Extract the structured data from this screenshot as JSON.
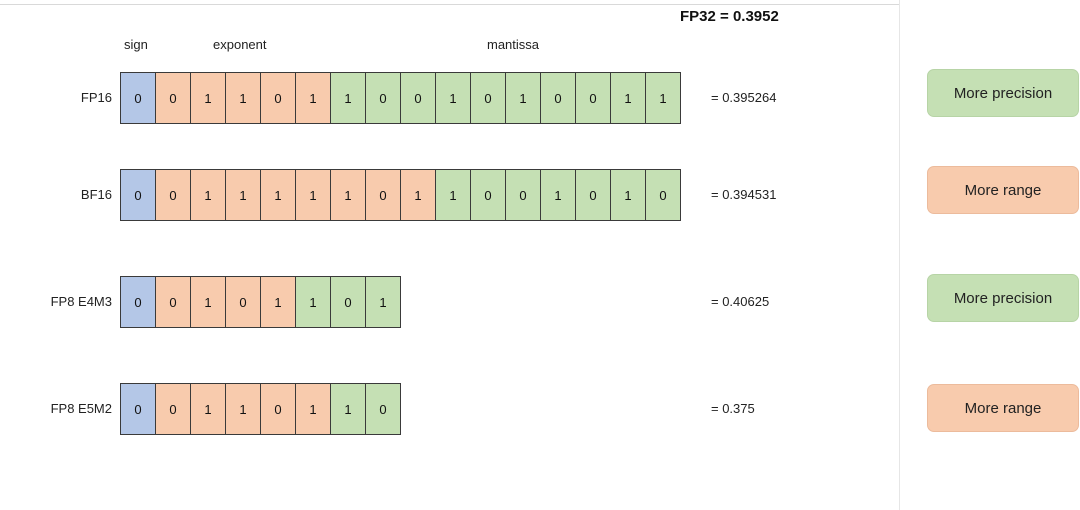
{
  "title": "FP32 = 0.3952",
  "headers": {
    "sign": "sign",
    "exponent": "exponent",
    "mantissa": "mantissa"
  },
  "colors": {
    "sign": "#b4c7e7",
    "exponent": "#f8cbad",
    "mantissa": "#c5e0b4"
  },
  "rows": [
    {
      "label": "FP16",
      "sign": [
        "0"
      ],
      "exponent": [
        "0",
        "1",
        "1",
        "0",
        "1"
      ],
      "mantissa": [
        "1",
        "0",
        "0",
        "1",
        "0",
        "1",
        "0",
        "0",
        "1",
        "1"
      ],
      "value": "= 0.395264",
      "badge": "More precision",
      "badge_color": "green"
    },
    {
      "label": "BF16",
      "sign": [
        "0"
      ],
      "exponent": [
        "0",
        "1",
        "1",
        "1",
        "1",
        "1",
        "0",
        "1"
      ],
      "mantissa": [
        "1",
        "0",
        "0",
        "1",
        "0",
        "1",
        "0"
      ],
      "value": "= 0.394531",
      "badge": "More range",
      "badge_color": "orange"
    },
    {
      "label": "FP8 E4M3",
      "sign": [
        "0"
      ],
      "exponent": [
        "0",
        "1",
        "0",
        "1"
      ],
      "mantissa": [
        "1",
        "0",
        "1"
      ],
      "value": "= 0.40625",
      "badge": "More precision",
      "badge_color": "green"
    },
    {
      "label": "FP8 E5M2",
      "sign": [
        "0"
      ],
      "exponent": [
        "0",
        "1",
        "1",
        "0",
        "1"
      ],
      "mantissa": [
        "1",
        "0"
      ],
      "value": "= 0.375",
      "badge": "More range",
      "badge_color": "orange"
    }
  ]
}
